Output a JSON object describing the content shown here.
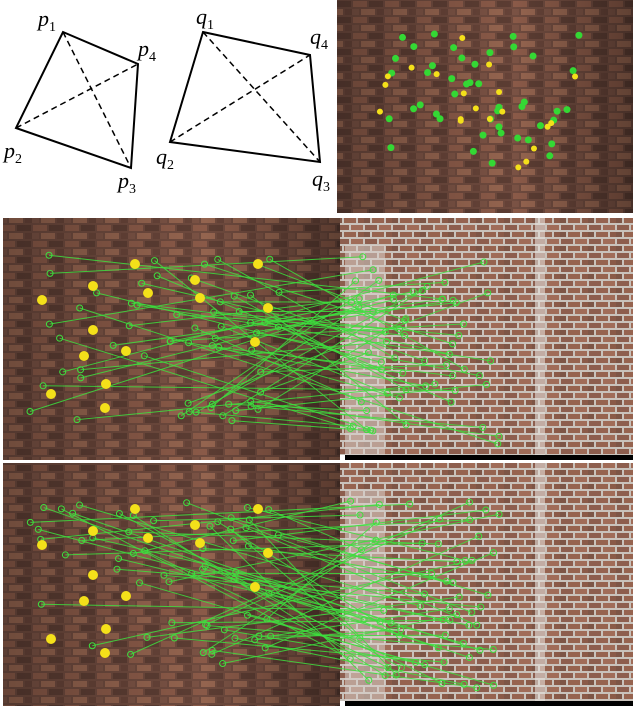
{
  "diagram_left": {
    "labels": [
      {
        "base": "p",
        "sub": "1"
      },
      {
        "base": "p",
        "sub": "4"
      },
      {
        "base": "p",
        "sub": "2"
      },
      {
        "base": "p",
        "sub": "3"
      }
    ]
  },
  "diagram_right": {
    "labels": [
      {
        "base": "q",
        "sub": "1"
      },
      {
        "base": "q",
        "sub": "4"
      },
      {
        "base": "q",
        "sub": "2"
      },
      {
        "base": "q",
        "sub": "3"
      }
    ]
  }
}
